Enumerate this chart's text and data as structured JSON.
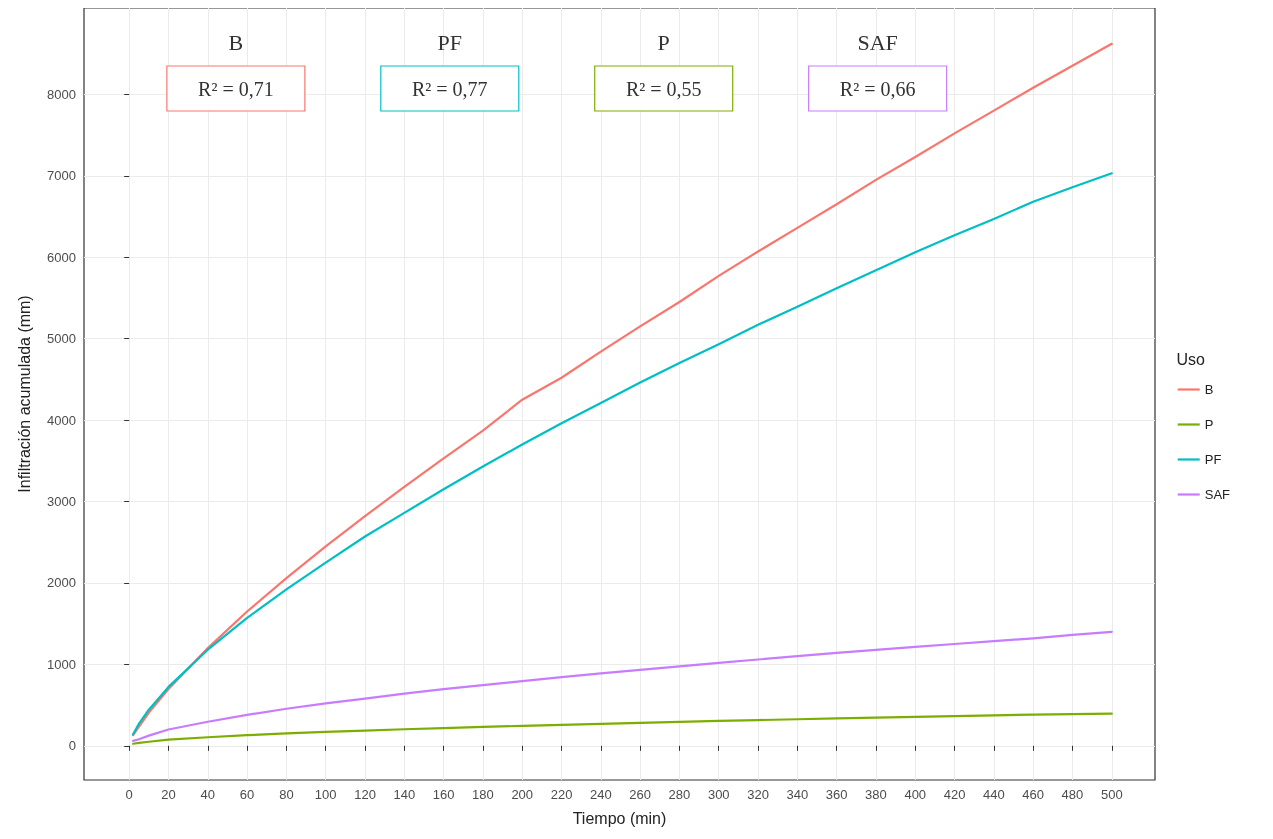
{
  "chart_data": {
    "type": "line",
    "xlabel": "Tiempo (min)",
    "ylabel": "Infiltración acumulada (mm)",
    "legend_title": "Uso",
    "legend": "right",
    "grid": true,
    "marker": "none",
    "line_style": "solid",
    "xlim": [
      -23,
      522
    ],
    "xticks": [
      0,
      20,
      40,
      60,
      80,
      100,
      120,
      140,
      160,
      180,
      200,
      220,
      240,
      260,
      280,
      300,
      320,
      340,
      360,
      380,
      400,
      420,
      440,
      460,
      480,
      500
    ],
    "ylim": [
      -420,
      9060
    ],
    "yticks": [
      0,
      1000,
      2000,
      3000,
      4000,
      5000,
      6000,
      7000,
      8000
    ],
    "x": [
      2,
      5,
      10,
      20,
      40,
      60,
      80,
      100,
      120,
      140,
      160,
      180,
      200,
      220,
      240,
      260,
      280,
      300,
      320,
      340,
      360,
      380,
      400,
      420,
      440,
      460,
      480,
      500
    ],
    "series": [
      {
        "name": "B",
        "color": "#f8766d",
        "values": [
          130,
          237,
          407,
          697,
          1200,
          1649,
          2060,
          2450,
          2820,
          3180,
          3530,
          3870,
          4250,
          4520,
          4840,
          5150,
          5450,
          5770,
          6070,
          6360,
          6650,
          6950,
          7230,
          7520,
          7800,
          8080,
          8350,
          8620
        ]
      },
      {
        "name": "P",
        "color": "#7cae00",
        "values": [
          25,
          35,
          50,
          75,
          105,
          130,
          152,
          170,
          187,
          203,
          218,
          232,
          245,
          258,
          270,
          282,
          294,
          305,
          316,
          326,
          336,
          346,
          356,
          365,
          374,
          383,
          390,
          395
        ]
      },
      {
        "name": "PF",
        "color": "#00bfc4",
        "values": [
          142,
          272,
          443,
          723,
          1180,
          1570,
          1920,
          2250,
          2570,
          2860,
          3150,
          3430,
          3700,
          3960,
          4210,
          4460,
          4700,
          4930,
          5170,
          5390,
          5620,
          5840,
          6060,
          6270,
          6470,
          6680,
          6860,
          7030
        ]
      },
      {
        "name": "SAF",
        "color": "#c77cff",
        "values": [
          60,
          80,
          125,
          200,
          295,
          380,
          455,
          520,
          580,
          640,
          695,
          745,
          795,
          843,
          890,
          933,
          975,
          1018,
          1060,
          1100,
          1140,
          1178,
          1215,
          1250,
          1285,
          1320,
          1362,
          1400
        ]
      }
    ],
    "annotations": [
      "B",
      "R² = 0,71",
      "PF",
      "R² = 0,77",
      "P",
      "R² = 0,55",
      "SAF",
      "R² = 0,66"
    ]
  }
}
